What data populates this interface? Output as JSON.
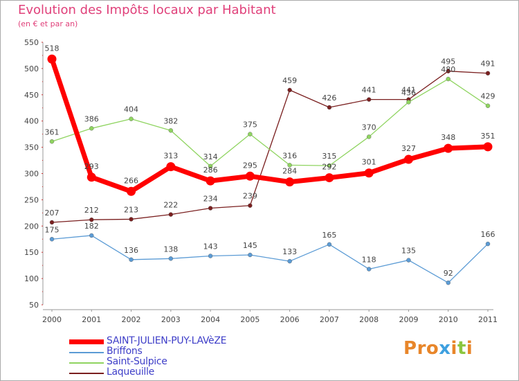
{
  "header": {
    "title": "Evolution des Impôts locaux par Habitant",
    "subtitle": "(en € et par an)"
  },
  "brand": {
    "logo_text": "Proxiti",
    "logo_colors": [
      "#e8862a",
      "#e8862a",
      "#e8862a",
      "#3ea0e0",
      "#e8862a",
      "#8cc63f",
      "#e8862a"
    ]
  },
  "chart_data": {
    "type": "line",
    "title": "Evolution des Impôts locaux par Habitant",
    "subtitle": "(en € et par an)",
    "xlabel": "",
    "ylabel": "",
    "x": [
      "2000",
      "2001",
      "2002",
      "2003",
      "2004",
      "2005",
      "2006",
      "2007",
      "2008",
      "2009",
      "2010",
      "2011"
    ],
    "ylim": [
      50,
      550
    ],
    "yticks": [
      50,
      100,
      150,
      200,
      250,
      300,
      350,
      400,
      450,
      500,
      550
    ],
    "grid": false,
    "legend_position": "bottom-left",
    "series": [
      {
        "name": "SAINT-JULIEN-PUY-LAVèZE",
        "color": "#ff0000",
        "values": [
          518,
          293,
          266,
          313,
          286,
          295,
          284,
          292,
          301,
          327,
          348,
          351
        ],
        "labels": [
          "518",
          "293",
          "266",
          "313",
          "286",
          "295",
          "284",
          "292",
          "301",
          "327",
          "348",
          "351"
        ]
      },
      {
        "name": "Briffons",
        "color": "#5b9bd5",
        "values": [
          175,
          182,
          136,
          138,
          143,
          145,
          133,
          165,
          118,
          135,
          92,
          166
        ],
        "labels": [
          "175",
          "182",
          "136",
          "138",
          "143",
          "145",
          "133",
          "165",
          "118",
          "135",
          "92",
          "166"
        ]
      },
      {
        "name": "Saint-Sulpice",
        "color": "#8fd460",
        "values": [
          361,
          386,
          404,
          382,
          314,
          375,
          316,
          315,
          370,
          436,
          480,
          429
        ],
        "labels": [
          "361",
          "386",
          "404",
          "382",
          "314",
          "375",
          "316",
          "315",
          "370",
          "436",
          "480",
          "429"
        ]
      },
      {
        "name": "Laqueuille",
        "color": "#7a1f1f",
        "values": [
          207,
          212,
          213,
          222,
          234,
          239,
          459,
          426,
          441,
          441,
          495,
          491
        ],
        "labels": [
          "207",
          "212",
          "213",
          "222",
          "234",
          "239",
          "459",
          "426",
          "441",
          "441",
          "495",
          "491"
        ]
      }
    ]
  }
}
